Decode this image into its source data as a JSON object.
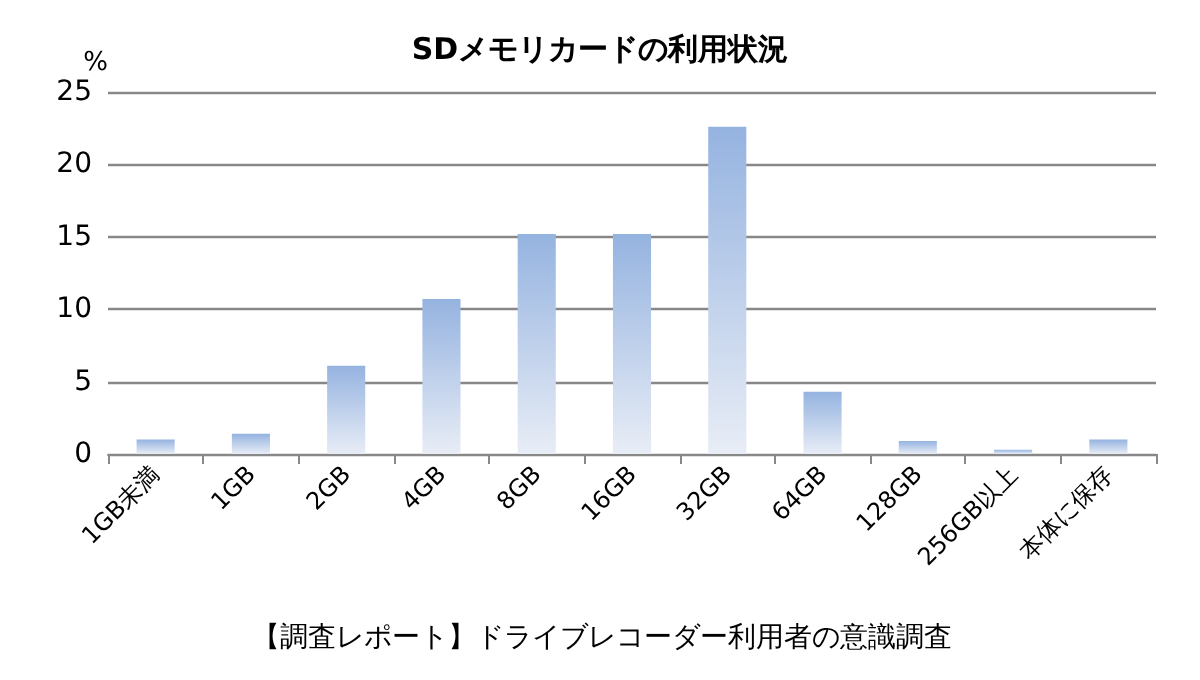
{
  "chart_data": {
    "type": "bar",
    "title": "SDメモリカードの利用状況",
    "ylabel": "%",
    "categories": [
      "1GB未満",
      "1GB",
      "2GB",
      "4GB",
      "8GB",
      "16GB",
      "32GB",
      "64GB",
      "128GB",
      "256GB以上",
      "本体に保存"
    ],
    "values": [
      1.0,
      1.4,
      6.1,
      10.7,
      15.2,
      15.2,
      22.6,
      4.3,
      0.9,
      0.3,
      1.0
    ],
    "color": "#95b3e0",
    "ylim": [
      0,
      25
    ],
    "yticks": [
      0,
      5,
      10,
      15,
      20,
      25
    ],
    "grid": "y",
    "annotations": [
      "【調査レポート】ドライブレコーダー利用者の意識調査"
    ]
  }
}
